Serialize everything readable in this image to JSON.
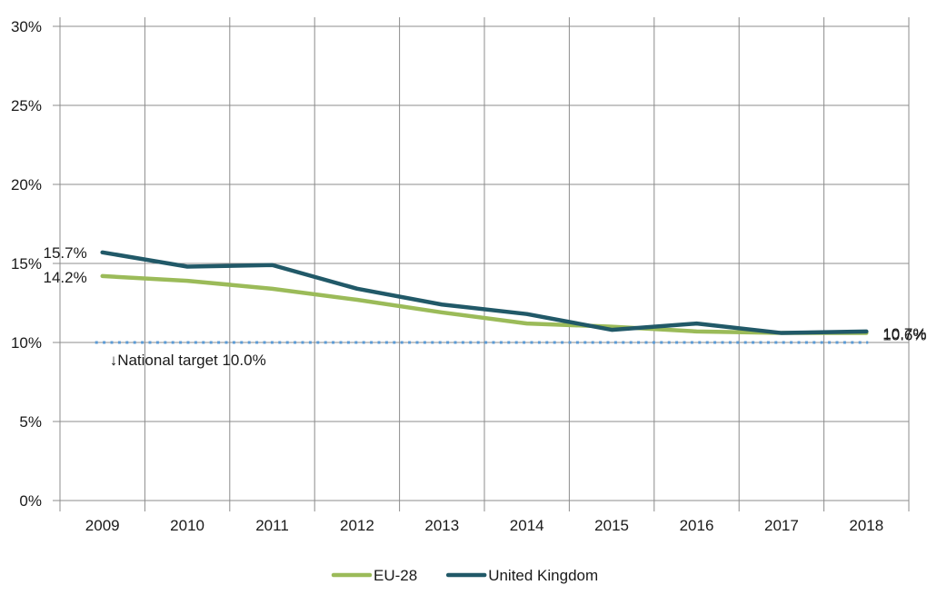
{
  "chart_data": {
    "type": "line",
    "title": "",
    "xlabel": "",
    "ylabel": "",
    "categories": [
      "2009",
      "2010",
      "2011",
      "2012",
      "2013",
      "2014",
      "2015",
      "2016",
      "2017",
      "2018"
    ],
    "ylim": [
      0,
      30
    ],
    "yticks": [
      0,
      5,
      10,
      15,
      20,
      25,
      30
    ],
    "ytick_labels": [
      "0%",
      "5%",
      "10%",
      "15%",
      "20%",
      "25%",
      "30%"
    ],
    "grid": true,
    "legend_position": "bottom",
    "series": [
      {
        "name": "EU-28",
        "color": "#9bbb59",
        "values": [
          14.2,
          13.9,
          13.4,
          12.7,
          11.9,
          11.2,
          11.0,
          10.7,
          10.6,
          10.6
        ],
        "start_label": "14.2%",
        "end_label": "10.6%"
      },
      {
        "name": "United Kingdom",
        "color": "#215968",
        "values": [
          15.7,
          14.8,
          14.9,
          13.4,
          12.4,
          11.8,
          10.8,
          11.2,
          10.6,
          10.7
        ],
        "start_label": "15.7%",
        "end_label": "10.7%"
      }
    ],
    "target": {
      "value": 10.0,
      "label": "↓National target  10.0%",
      "color": "#5b9bd5"
    }
  }
}
